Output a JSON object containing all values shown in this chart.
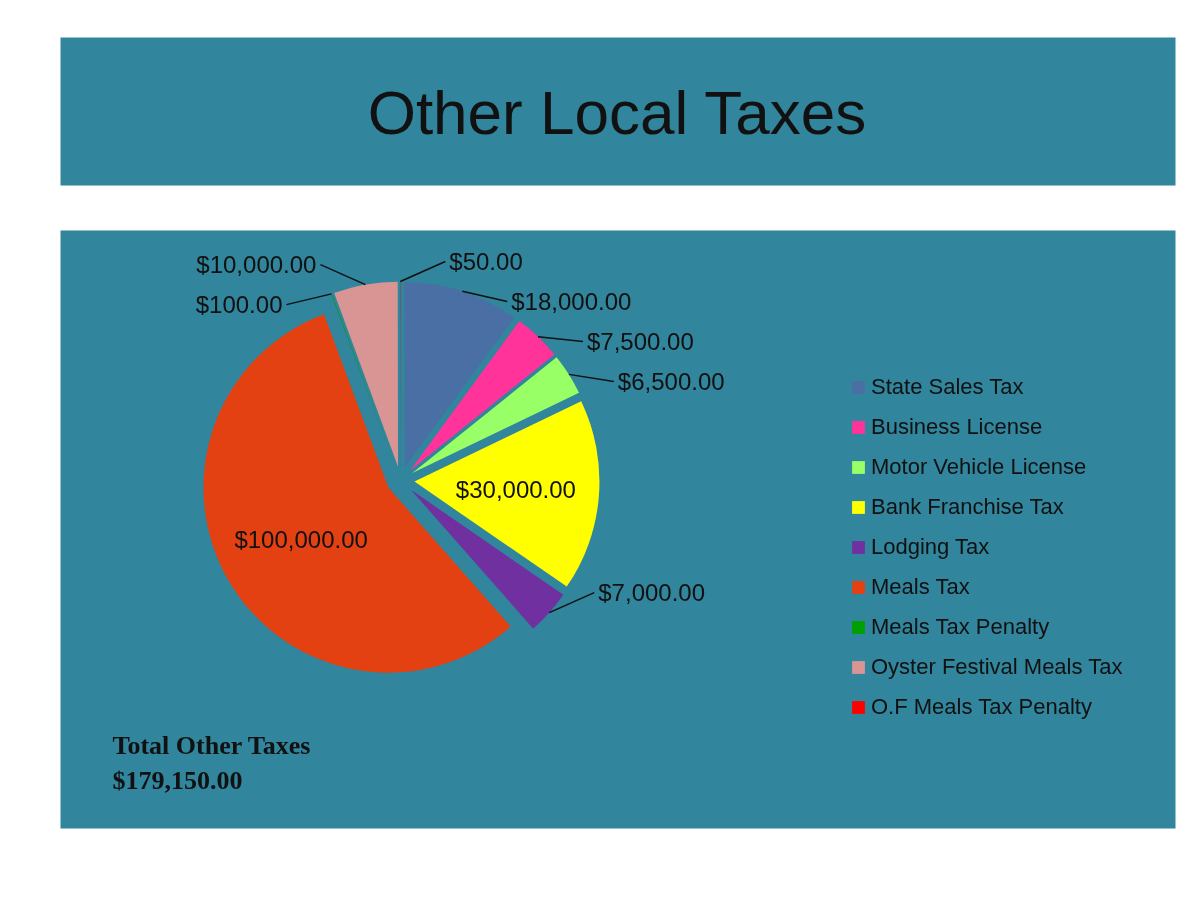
{
  "chart_data": {
    "type": "pie",
    "title": "Other Local Taxes",
    "categories": [
      "State Sales Tax",
      "Business License",
      "Motor Vehicle License",
      "Bank Franchise Tax",
      "Lodging Tax",
      "Meals Tax",
      "Meals Tax Penalty",
      "Oyster Festival Meals Tax",
      "O.F Meals Tax Penalty"
    ],
    "values": [
      18000,
      7500,
      6500,
      30000,
      7000,
      100000,
      100,
      10000,
      50
    ],
    "colors": [
      "#4a6fa5",
      "#ff3399",
      "#99ff66",
      "#ffff00",
      "#7030a0",
      "#e34112",
      "#00a000",
      "#d99594",
      "#ff0000"
    ],
    "value_labels": [
      "$18,000.00",
      "$7,500.00",
      "$6,500.00",
      "$30,000.00",
      "$7,000.00",
      "$100,000.00",
      "$100.00",
      "$10,000.00",
      "$50.00"
    ],
    "annotations": [
      "Total Other Taxes",
      "$179,150.00"
    ],
    "legend": "right"
  }
}
